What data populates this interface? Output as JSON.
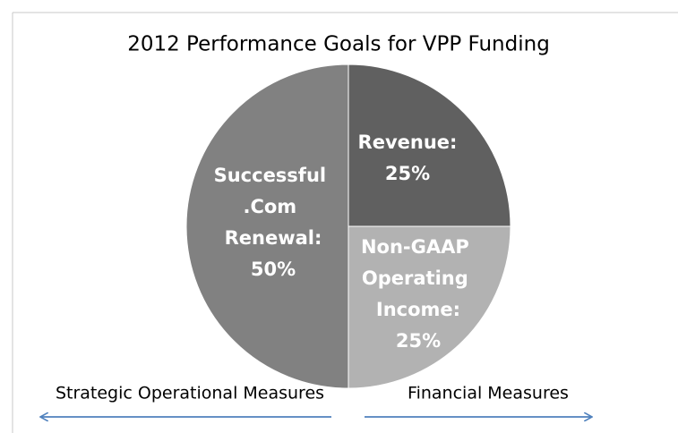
{
  "chart_data": {
    "type": "pie",
    "title": "2012 Performance Goals for VPP Funding",
    "categories": [
      "Revenue:",
      "Non-GAAP Operating Income:",
      "Successful .Com Renewal:"
    ],
    "values": [
      25,
      25,
      50
    ],
    "value_labels": [
      "25%",
      "25%",
      "50%"
    ],
    "colors": [
      "#606060",
      "#b2b2b2",
      "#818181"
    ],
    "annotations": [
      "Strategic Operational Measures",
      "Financial Measures"
    ]
  }
}
